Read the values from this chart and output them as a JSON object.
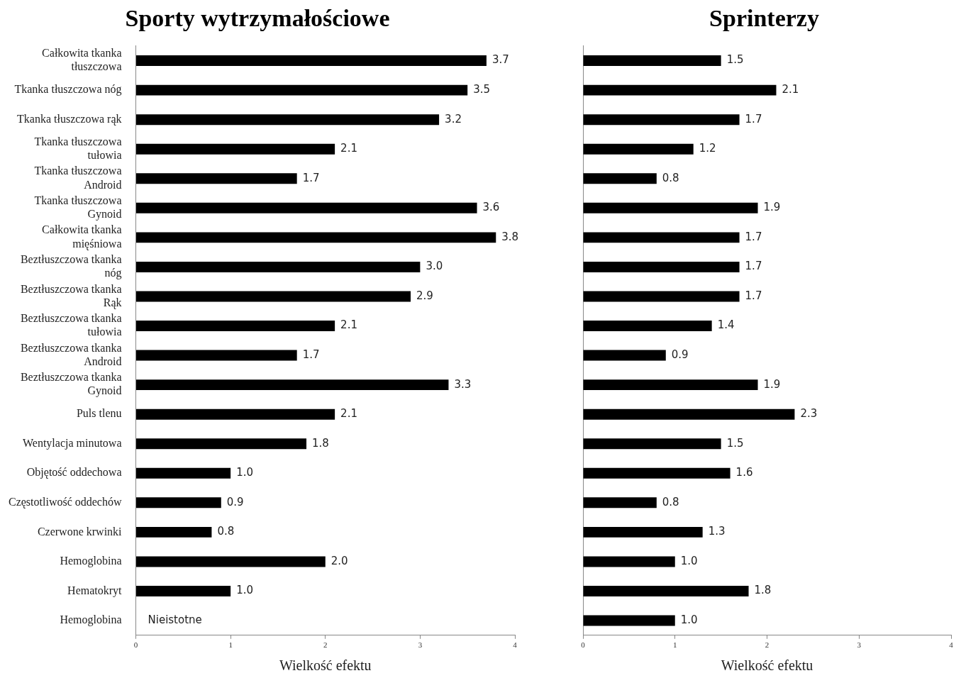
{
  "chart_data": [
    {
      "type": "bar",
      "orientation": "horizontal",
      "title": "Sporty wytrzymałościowe",
      "xlabel": "Wielkość efektu",
      "categories": [
        "Całkowita tkanka tłuszczowa",
        "Tkanka tłuszczowa nóg",
        "Tkanka tłuszczowa rąk",
        "Tkanka tłuszczowa tułowia",
        "Tkanka tłuszczowa Android",
        "Tkanka tłuszczowa Gynoid",
        "Całkowita tkanka mięśniowa",
        "Beztłuszczowa tkanka nóg",
        "Beztłuszczowa tkanka Rąk",
        "Beztłuszczowa tkanka tułowia",
        "Beztłuszczowa tkanka Android",
        "Beztłuszczowa tkanka Gynoid",
        "Puls tlenu",
        "Wentylacja minutowa",
        "Objętość oddechowa",
        "Częstotliwość oddechów",
        "Czerwone krwinki",
        "Hemoglobina",
        "Hematokryt",
        "Hemoglobina"
      ],
      "values": [
        3.7,
        3.5,
        3.2,
        2.1,
        1.7,
        3.6,
        3.8,
        3.0,
        2.9,
        2.1,
        1.7,
        3.3,
        2.1,
        1.8,
        1.0,
        0.9,
        0.8,
        2.0,
        1.0,
        null
      ],
      "value_labels": [
        "3.7",
        "3.5",
        "3.2",
        "2.1",
        "1.7",
        "3.6",
        "3.8",
        "3.0",
        "2.9",
        "2.1",
        "1.7",
        "3.3",
        "2.1",
        "1.8",
        "1.0",
        "0.9",
        "0.8",
        "2.0",
        "1.0",
        null
      ],
      "color": "#000000",
      "xlim": [
        0,
        4
      ],
      "xticks": [
        0,
        1,
        2,
        3,
        4
      ],
      "grid": false,
      "legend": false,
      "annotations": [
        "Nieistotne"
      ]
    },
    {
      "type": "bar",
      "orientation": "horizontal",
      "title": "Sprinterzy",
      "xlabel": "Wielkość efektu",
      "tick_labels": "x",
      "categories": [
        null,
        null,
        null,
        null,
        null,
        null,
        null,
        null,
        null,
        null,
        null,
        null,
        null,
        null,
        null,
        null,
        null,
        null,
        null,
        null
      ],
      "values": [
        1.5,
        2.1,
        1.7,
        1.2,
        0.8,
        1.9,
        1.7,
        1.7,
        1.7,
        1.4,
        0.9,
        1.9,
        2.3,
        1.5,
        1.6,
        0.8,
        1.3,
        1.0,
        1.8,
        1.0
      ],
      "value_labels": [
        "1.5",
        "2.1",
        "1.7",
        "1.2",
        "0.8",
        "1.9",
        "1.7",
        "1.7",
        "1.7",
        "1.4",
        "0.9",
        "1.9",
        "2.3",
        "1.5",
        "1.6",
        "0.8",
        "1.3",
        "1.0",
        "1.8",
        "1.0"
      ],
      "color": "#000000",
      "xlim": [
        0,
        4
      ],
      "xticks": [
        0,
        1,
        2,
        3,
        4
      ],
      "grid": false,
      "legend": false
    }
  ]
}
